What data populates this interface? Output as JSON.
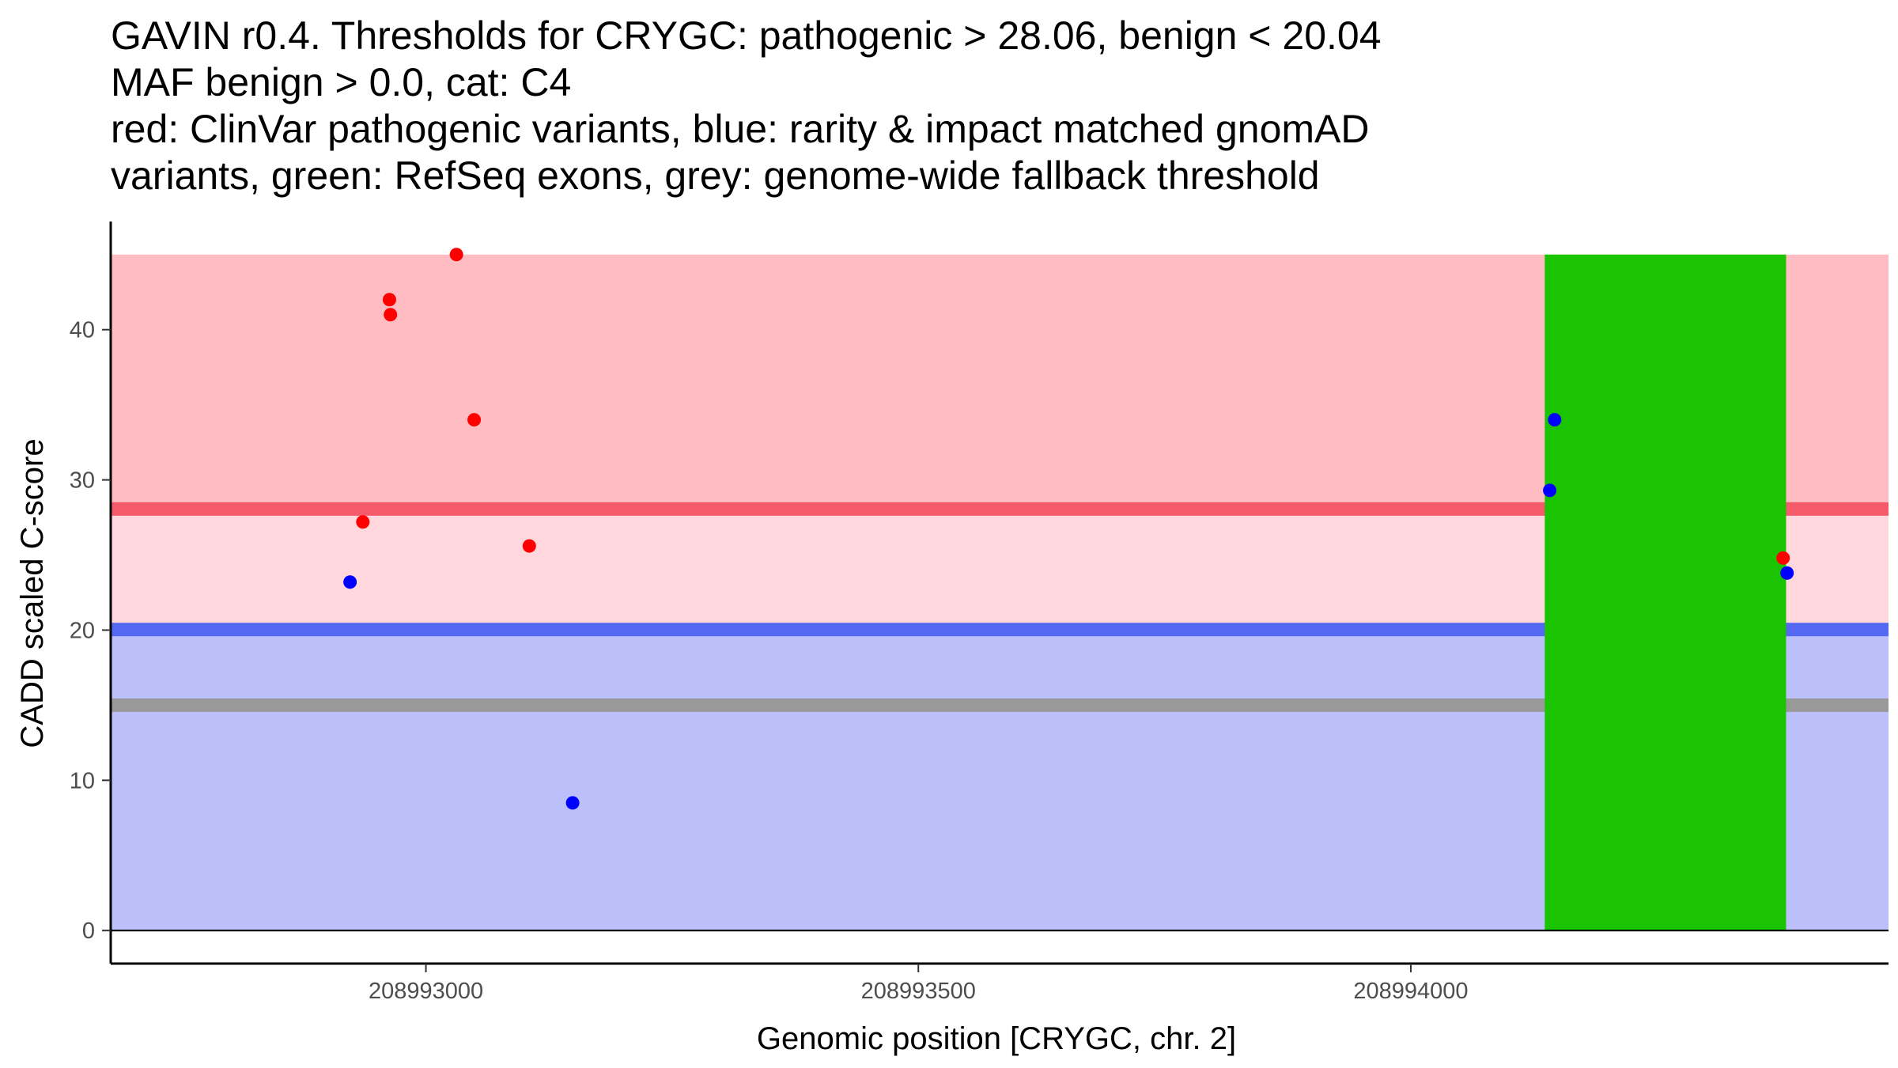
{
  "chart_data": {
    "type": "scatter",
    "title_lines": [
      "GAVIN r0.4. Thresholds for CRYGC: pathogenic > 28.06, benign < 20.04",
      "MAF benign > 0.0, cat: C4",
      "red: ClinVar pathogenic variants, blue: rarity & impact matched gnomAD",
      "variants, green: RefSeq exons, grey: genome-wide fallback threshold"
    ],
    "xlabel": "Genomic position [CRYGC, chr. 2]",
    "ylabel": "CADD scaled C-score",
    "xlim": [
      208992680,
      208994485
    ],
    "ylim": [
      -2.2,
      47.2
    ],
    "x_ticks": [
      208993000,
      208993500,
      208994000
    ],
    "x_tick_labels": [
      "208993000",
      "208993500",
      "208994000"
    ],
    "y_ticks": [
      0,
      10,
      20,
      30,
      40
    ],
    "y_tick_labels": [
      "0",
      "10",
      "20",
      "30",
      "40"
    ],
    "thresholds": {
      "pathogenic": 28.06,
      "benign": 20.04,
      "fallback": 15.0,
      "max_score": 45
    },
    "colors": {
      "pathogenic_region": "#ffbdc3",
      "middle_region": "#ffd7dc",
      "benign_region": "#bbc0fb",
      "pathogenic_line": "#f45a6a",
      "benign_line": "#5468f2",
      "fallback_line": "#999999",
      "exon": "#1bc400",
      "pathogenic_point": "#ff0000",
      "benign_point": "#0000ff"
    },
    "exons": [
      {
        "start": 208994136,
        "end": 208994381
      }
    ],
    "series": [
      {
        "name": "ClinVar pathogenic variants",
        "color": "#ff0000",
        "points": [
          {
            "x": 208993031,
            "y": 45.0
          },
          {
            "x": 208992963,
            "y": 42.0
          },
          {
            "x": 208992964,
            "y": 41.0
          },
          {
            "x": 208993049,
            "y": 34.0
          },
          {
            "x": 208992936,
            "y": 27.2
          },
          {
            "x": 208993105,
            "y": 25.6
          },
          {
            "x": 208994378,
            "y": 24.8
          }
        ]
      },
      {
        "name": "rarity & impact matched gnomAD variants",
        "color": "#0000ff",
        "points": [
          {
            "x": 208992923,
            "y": 23.2
          },
          {
            "x": 208993149,
            "y": 8.5
          },
          {
            "x": 208994146,
            "y": 34.0
          },
          {
            "x": 208994141,
            "y": 29.3
          },
          {
            "x": 208994382,
            "y": 23.8
          }
        ]
      }
    ]
  }
}
